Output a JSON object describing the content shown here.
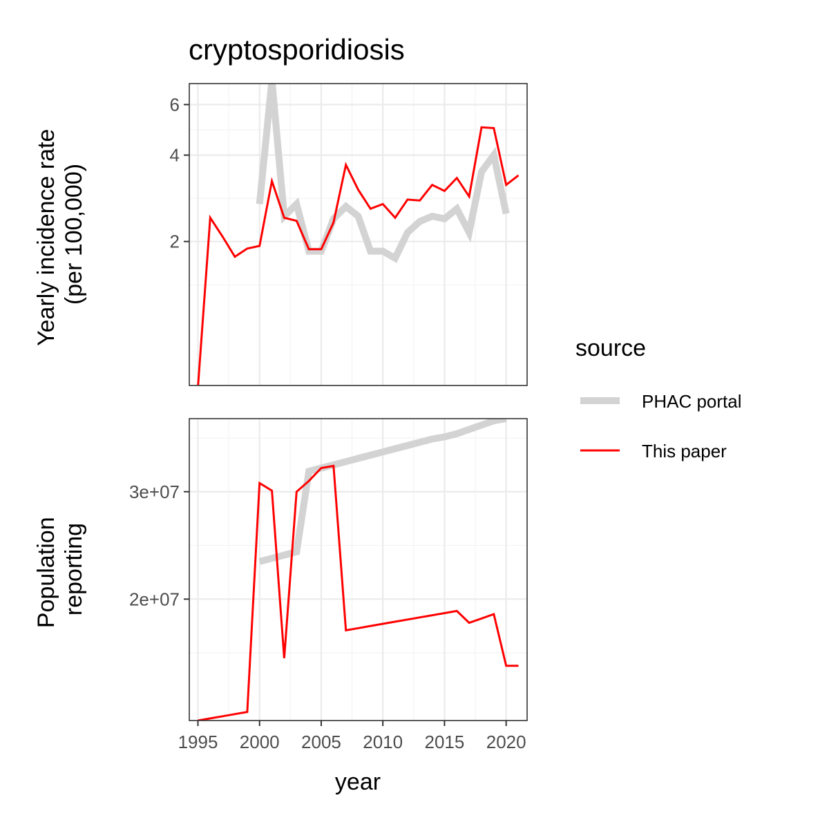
{
  "chart_data": {
    "type": "line",
    "title": "cryptosporidiosis",
    "xlabel": "year",
    "x_ticks": [
      1995,
      2000,
      2005,
      2010,
      2015,
      2020
    ],
    "xlim": [
      1994.3,
      2021.7
    ],
    "legend": {
      "title": "source",
      "position": "right",
      "entries": [
        {
          "name": "PHAC portal",
          "color": "#d3d3d3"
        },
        {
          "name": "This paper",
          "color": "#ff0000"
        }
      ]
    },
    "panels": [
      {
        "ylabel": [
          "Yearly incidence rate",
          "(per 100,000)"
        ],
        "y_scale": "log",
        "ylim": [
          0.63,
          7.1
        ],
        "y_ticks": [
          2,
          4,
          6
        ],
        "y_tick_labels": [
          "2",
          "4",
          "6"
        ],
        "y_minor_ticks": [
          1.41,
          2.83,
          4.9
        ],
        "series": [
          {
            "name": "PHAC portal",
            "color": "#d3d3d3",
            "x": [
              2000,
              2001,
              2002,
              2003,
              2004,
              2005,
              2006,
              2007,
              2008,
              2009,
              2010,
              2011,
              2012,
              2013,
              2014,
              2015,
              2016,
              2017,
              2018,
              2019,
              2020
            ],
            "values": [
              2.7,
              7.3,
              2.45,
              2.7,
              1.85,
              1.85,
              2.4,
              2.65,
              2.45,
              1.85,
              1.85,
              1.75,
              2.15,
              2.35,
              2.45,
              2.4,
              2.6,
              2.15,
              3.5,
              4.0,
              2.5
            ]
          },
          {
            "name": "This paper",
            "color": "#ff0000",
            "x": [
              1995,
              1996,
              1997,
              1998,
              1999,
              2000,
              2001,
              2002,
              2003,
              2004,
              2005,
              2006,
              2007,
              2008,
              2009,
              2010,
              2011,
              2012,
              2013,
              2014,
              2015,
              2016,
              2017,
              2018,
              2019,
              2020,
              2021
            ],
            "values": [
              0.62,
              2.42,
              2.08,
              1.77,
              1.89,
              1.93,
              3.25,
              2.42,
              2.36,
              1.88,
              1.88,
              2.33,
              3.7,
              3.03,
              2.6,
              2.7,
              2.42,
              2.8,
              2.78,
              3.15,
              3.0,
              3.33,
              2.87,
              5.0,
              4.97,
              3.15,
              3.4
            ]
          }
        ]
      },
      {
        "ylabel": [
          "Population",
          "reporting"
        ],
        "y_scale": "linear",
        "ylim": [
          8700000,
          36800000
        ],
        "y_ticks": [
          20000000,
          30000000
        ],
        "y_tick_labels": [
          "2e+07",
          "3e+07"
        ],
        "y_minor_ticks": [
          15000000,
          25000000,
          35000000
        ],
        "series": [
          {
            "name": "PHAC portal",
            "color": "#d3d3d3",
            "x": [
              2000,
              2001,
              2002,
              2003,
              2004,
              2005,
              2006,
              2007,
              2008,
              2009,
              2010,
              2011,
              2012,
              2013,
              2014,
              2015,
              2016,
              2017,
              2018,
              2019,
              2020
            ],
            "values": [
              23500000,
              23800000,
              24100000,
              24400000,
              31900000,
              32200000,
              32500000,
              32800000,
              33100000,
              33400000,
              33700000,
              34000000,
              34300000,
              34600000,
              34900000,
              35100000,
              35400000,
              35800000,
              36200000,
              36600000,
              36800000
            ]
          },
          {
            "name": "This paper",
            "color": "#ff0000",
            "x": [
              1995,
              1996,
              1997,
              1998,
              1999,
              2000,
              2001,
              2002,
              2003,
              2004,
              2005,
              2006,
              2007,
              2008,
              2009,
              2010,
              2011,
              2012,
              2013,
              2014,
              2015,
              2016,
              2017,
              2018,
              2019,
              2020,
              2021
            ],
            "values": [
              8700000,
              8900000,
              9100000,
              9300000,
              9500000,
              30800000,
              30100000,
              14500000,
              30000000,
              31000000,
              32200000,
              32400000,
              17100000,
              17300000,
              17500000,
              17700000,
              17900000,
              18100000,
              18300000,
              18500000,
              18700000,
              18900000,
              17800000,
              18200000,
              18600000,
              13800000,
              13800000
            ]
          }
        ]
      }
    ]
  }
}
